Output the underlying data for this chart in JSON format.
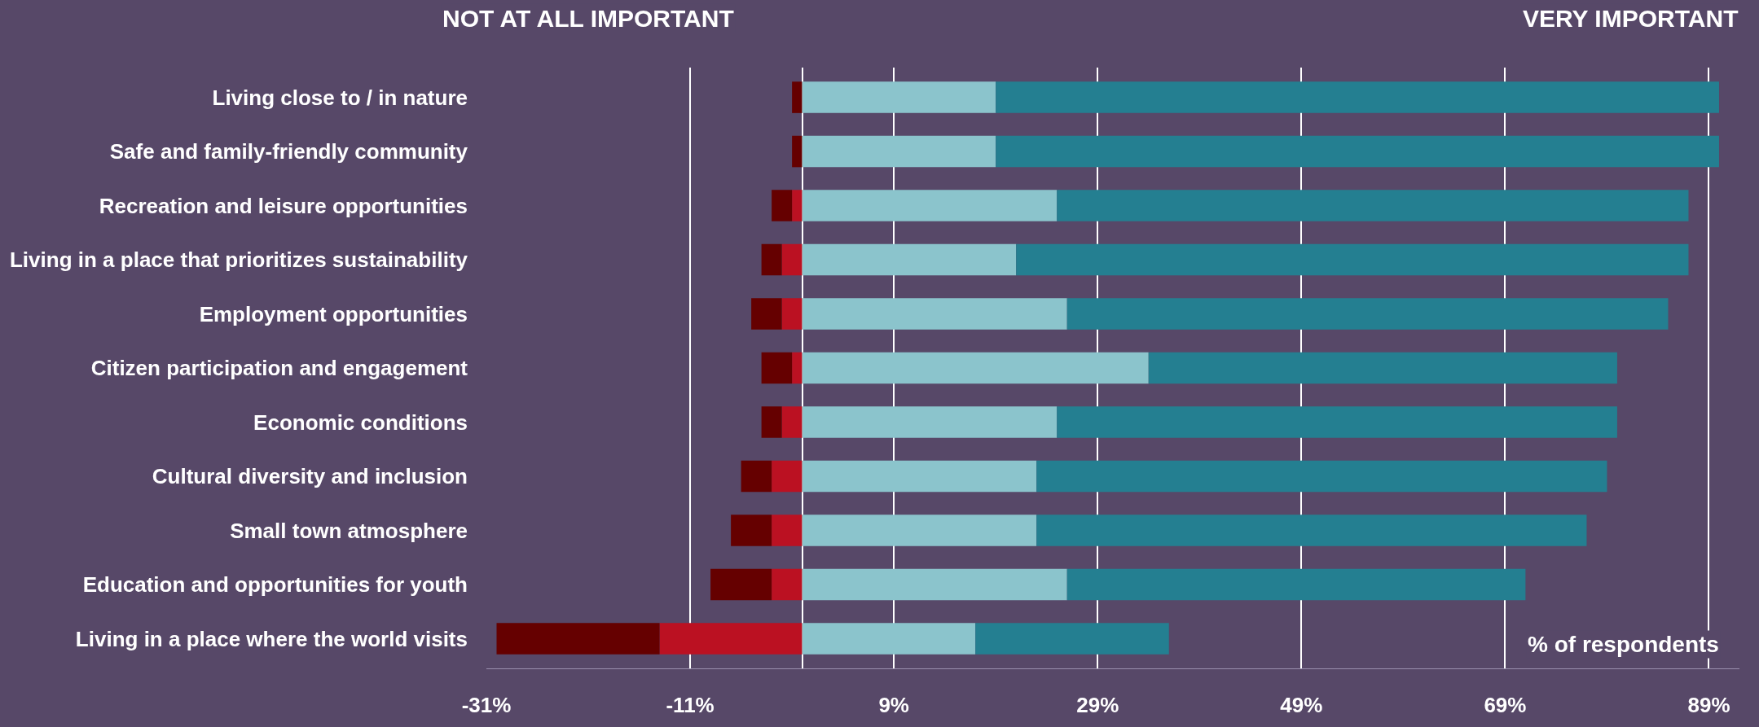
{
  "chart_data": {
    "type": "bar",
    "orientation": "horizontal",
    "stacked": true,
    "categories": [
      "Living close to / in nature",
      "Safe and family-friendly community",
      "Recreation and leisure opportunities",
      "Living in a place that prioritizes sustainability",
      "Employment opportunities",
      "Citizen participation and engagement",
      "Economic conditions",
      "Cultural diversity and inclusion",
      "Small town atmosphere",
      "Education and opportunities for youth",
      "Living in a place where the world visits"
    ],
    "series": [
      {
        "color": "#bb1122",
        "values": [
          0,
          0,
          -1,
          -2,
          -2,
          -1,
          -2,
          -3,
          -3,
          -3,
          -14
        ]
      },
      {
        "color": "#650000",
        "values": [
          -1,
          -1,
          -2,
          -2,
          -3,
          -3,
          -2,
          -3,
          -4,
          -6,
          -16
        ]
      },
      {
        "color": "#8bc4cc",
        "values": [
          19,
          19,
          25,
          21,
          26,
          34,
          25,
          23,
          23,
          26,
          17
        ]
      },
      {
        "color": "#247f91",
        "values": [
          71,
          71,
          62,
          66,
          59,
          46,
          55,
          56,
          54,
          45,
          19
        ]
      }
    ],
    "xlim": [
      -31,
      92
    ],
    "xticks": [
      {
        "value": -31,
        "label": "-31%"
      },
      {
        "value": -11,
        "label": "-11%"
      },
      {
        "value": 9,
        "label": "9%"
      },
      {
        "value": 29,
        "label": "29%"
      },
      {
        "value": 49,
        "label": "49%"
      },
      {
        "value": 69,
        "label": "69%"
      },
      {
        "value": 89,
        "label": "89%"
      }
    ],
    "grid": "x",
    "annotations": [
      "NOT AT ALL IMPORTANT",
      "VERY IMPORTANT",
      "% of respondents"
    ]
  }
}
